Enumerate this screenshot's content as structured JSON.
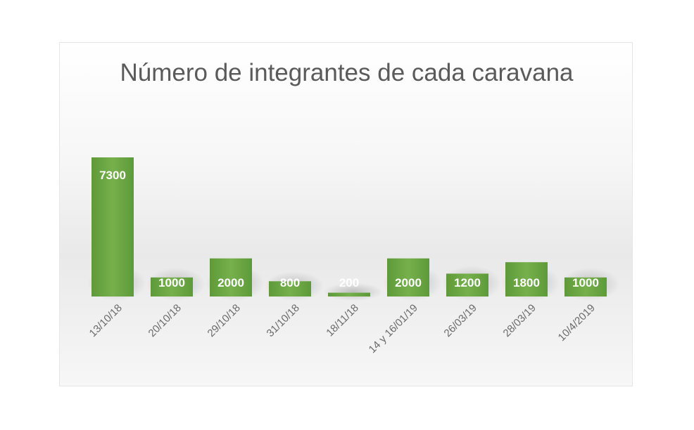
{
  "chart_data": {
    "type": "bar",
    "title": "Número de integrantes de cada caravana",
    "xlabel": "",
    "ylabel": "",
    "categories": [
      "13/10/18",
      "20/10/18",
      "29/10/18",
      "31/10/18",
      "18/11/18",
      "14 y 16/01/19",
      "26/03/19",
      "28/03/19",
      "10/4/2019"
    ],
    "values": [
      7300,
      1000,
      2000,
      800,
      200,
      2000,
      1200,
      1800,
      1000
    ],
    "data_labels": [
      "7300",
      "1000",
      "2000",
      "800",
      "200",
      "2000",
      "1200",
      "1800",
      "1000"
    ],
    "ylim": [
      0,
      7300
    ],
    "grid": false,
    "legend": "none",
    "bar_color": "#70ad47"
  }
}
